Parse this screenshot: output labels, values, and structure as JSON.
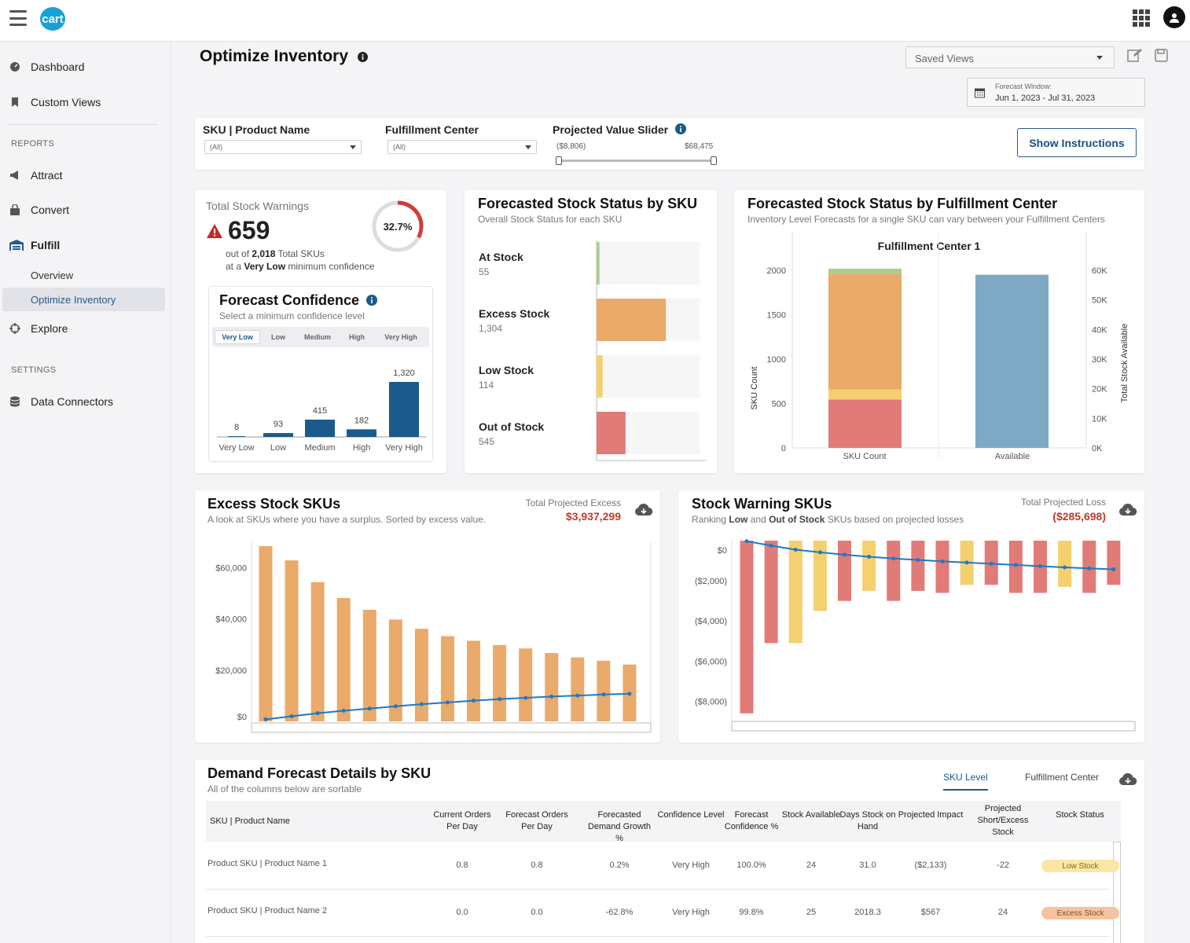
{
  "app": {
    "logo_text": "cart"
  },
  "sidebar": {
    "items": [
      {
        "label": "Dashboard"
      },
      {
        "label": "Custom Views"
      }
    ],
    "reports_header": "REPORTS",
    "reports": [
      {
        "label": "Attract"
      },
      {
        "label": "Convert"
      },
      {
        "label": "Fulfill"
      }
    ],
    "fulfill_sub": [
      {
        "label": "Overview"
      },
      {
        "label": "Optimize Inventory"
      }
    ],
    "explore": "Explore",
    "settings_header": "SETTINGS",
    "data_connectors": "Data Connectors"
  },
  "page": {
    "title": "Optimize Inventory",
    "saved_views": "Saved Views",
    "forecast_window_label": "Forecast Window:",
    "forecast_window_value": "Jun 1, 2023 - Jul 31, 2023"
  },
  "filters": {
    "sku_label": "SKU | Product Name",
    "sku_value": "(All)",
    "fc_label": "Fulfillment Center",
    "fc_value": "(All)",
    "slider_label": "Projected Value Slider",
    "slider_min": "($8,806)",
    "slider_max": "$68,475",
    "slider_range": [
      0,
      1
    ],
    "show_instructions": "Show Instructions"
  },
  "warnings": {
    "title": "Total Stock Warnings",
    "value": "659",
    "out_of_prefix": "out of",
    "total_skus": "2,018",
    "total_suffix": "Total SKUs",
    "at_a": "at a",
    "level": "Very Low",
    "min_conf": "minimum confidence",
    "percent": "32.7%",
    "ring_fraction": 0.327
  },
  "forecast_confidence": {
    "title": "Forecast Confidence",
    "subtitle": "Select a minimum confidence level",
    "levels": [
      "Very Low",
      "Low",
      "Medium",
      "High",
      "Very High"
    ],
    "selected": "Very Low"
  },
  "status_by_sku": {
    "title": "Forecasted Stock Status by SKU",
    "subtitle": "Overall Stock Status for each SKU",
    "rows": [
      {
        "label": "At Stock",
        "value": "55"
      },
      {
        "label": "Excess Stock",
        "value": "1,304"
      },
      {
        "label": "Low Stock",
        "value": "114"
      },
      {
        "label": "Out of Stock",
        "value": "545"
      }
    ]
  },
  "status_by_fc": {
    "title": "Forecasted Stock Status by Fulfillment Center",
    "subtitle": "Inventory Level Forecasts for a single SKU can vary between your Fulfillment Centers",
    "chart_title": "Fulfillment Center 1",
    "left_axis": "SKU Count",
    "right_axis": "Total Stock Available",
    "x_labels": [
      "SKU Count",
      "Available"
    ]
  },
  "excess": {
    "title": "Excess Stock SKUs",
    "subtitle": "A look at SKUs where you have a surplus. Sorted by excess value.",
    "total_label": "Total Projected Excess",
    "total_value": "$3,937,299"
  },
  "warning_skus": {
    "title": "Stock Warning SKUs",
    "subtitle_a": "Ranking",
    "subtitle_low": "Low",
    "subtitle_and": "and",
    "subtitle_out": "Out of Stock",
    "subtitle_b": "SKUs based on projected losses",
    "total_label": "Total Projected Loss",
    "total_value": "($285,698)"
  },
  "demand": {
    "title": "Demand Forecast Details by SKU",
    "subtitle": "All of the columns below are sortable",
    "tabs": [
      "SKU Level",
      "Fulfillment Center"
    ],
    "columns": [
      "SKU | Product Name",
      "Current Orders Per Day",
      "Forecast Orders Per Day",
      "Forecasted Demand Growth %",
      "Confidence Level",
      "Forecast Confidence %",
      "Stock Available",
      "Days Stock on Hand",
      "Projected Impact",
      "Projected Short/Excess Stock",
      "Stock Status"
    ],
    "rows": [
      [
        "Product SKU | Product Name 1",
        "0.8",
        "0.8",
        "0.2%",
        "Very High",
        "100.0%",
        "24",
        "31.0",
        "($2,133)",
        "-22",
        "Low Stock"
      ],
      [
        "Product SKU | Product Name 2",
        "0.0",
        "0.0",
        "-62.8%",
        "Very High",
        "99.8%",
        "25",
        "2018.3",
        "$567",
        "24",
        "Excess Stock"
      ]
    ]
  },
  "chart_data": [
    {
      "type": "bar",
      "title": "Forecast Confidence",
      "categories": [
        "Very Low",
        "Low",
        "Medium",
        "High",
        "Very High"
      ],
      "values": [
        8,
        93,
        415,
        182,
        1320
      ],
      "labels": [
        "8",
        "93",
        "415",
        "182",
        "1,320"
      ]
    },
    {
      "type": "bar",
      "title": "Forecasted Stock Status by SKU",
      "categories": [
        "At Stock",
        "Excess Stock",
        "Low Stock",
        "Out of Stock"
      ],
      "values": [
        55,
        1304,
        114,
        545
      ],
      "xlim": [
        0,
        2018
      ],
      "colors": [
        "#a9cf8e",
        "#e9aa6a",
        "#f4d06f",
        "#e07b78"
      ]
    },
    {
      "type": "bar",
      "title": "Fulfillment Center 1",
      "categories": [
        "SKU Count",
        "Available"
      ],
      "series": [
        {
          "name": "Out of Stock",
          "values": [
            545,
            null
          ]
        },
        {
          "name": "Low Stock",
          "values": [
            114,
            null
          ]
        },
        {
          "name": "Excess Stock",
          "values": [
            1304,
            null
          ]
        },
        {
          "name": "At Stock",
          "values": [
            55,
            null
          ]
        },
        {
          "name": "Total Stock Available",
          "values": [
            null,
            58500
          ]
        }
      ],
      "ylim_left": [
        0,
        2000
      ],
      "yticks_left": [
        "0",
        "500",
        "1000",
        "1500",
        "2000"
      ],
      "ylim_right": [
        0,
        60000
      ],
      "yticks_right": [
        "0K",
        "10K",
        "20K",
        "30K",
        "40K",
        "50K",
        "60K"
      ]
    },
    {
      "type": "bar",
      "title": "Excess Stock SKUs",
      "values": [
        68500,
        62900,
        54400,
        48200,
        43600,
        39800,
        36200,
        33300,
        31500,
        29800,
        28500,
        26700,
        25000,
        23700,
        22200
      ],
      "line": [
        800,
        2000,
        3200,
        4200,
        5000,
        5900,
        6700,
        7400,
        8100,
        8700,
        9200,
        9700,
        10100,
        10500,
        10800
      ],
      "ylim": [
        0,
        70000
      ],
      "yticks": [
        "$0",
        "$20,000",
        "$40,000",
        "$60,000"
      ]
    },
    {
      "type": "bar",
      "title": "Stock Warning SKUs",
      "values": [
        -8600,
        -5100,
        -5100,
        -3500,
        -3000,
        -2500,
        -3000,
        -2500,
        -2600,
        -2200,
        -2200,
        -2600,
        -2600,
        -2300,
        -2600,
        -2200
      ],
      "colors": [
        "#e07b78",
        "#e07b78",
        "#f4d06f",
        "#f4d06f",
        "#e07b78",
        "#f4d06f",
        "#e07b78",
        "#e07b78",
        "#e07b78",
        "#f4d06f",
        "#e07b78",
        "#e07b78",
        "#e07b78",
        "#f4d06f",
        "#e07b78",
        "#e07b78"
      ],
      "line": [
        -30,
        -250,
        -450,
        -580,
        -700,
        -800,
        -890,
        -960,
        -1030,
        -1090,
        -1150,
        -1210,
        -1270,
        -1330,
        -1380,
        -1430
      ],
      "ylim": [
        -9000,
        0
      ],
      "yticks": [
        "$0",
        "($2,000)",
        "($4,000)",
        "($6,000)",
        "($8,000)"
      ]
    }
  ]
}
